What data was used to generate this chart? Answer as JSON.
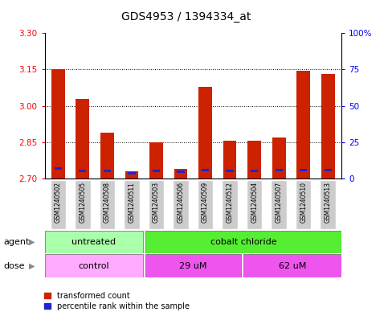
{
  "title": "GDS4953 / 1394334_at",
  "samples": [
    "GSM1240502",
    "GSM1240505",
    "GSM1240508",
    "GSM1240511",
    "GSM1240503",
    "GSM1240506",
    "GSM1240509",
    "GSM1240512",
    "GSM1240504",
    "GSM1240507",
    "GSM1240510",
    "GSM1240513"
  ],
  "transformed_count": [
    3.15,
    3.03,
    2.89,
    2.73,
    2.85,
    2.74,
    3.08,
    2.855,
    2.855,
    2.87,
    3.145,
    3.13
  ],
  "percentile_bottom": [
    2.738,
    2.728,
    2.728,
    2.718,
    2.728,
    2.722,
    2.73,
    2.728,
    2.728,
    2.73,
    2.73,
    2.73
  ],
  "percentile_height": [
    0.01,
    0.01,
    0.01,
    0.01,
    0.01,
    0.01,
    0.01,
    0.01,
    0.01,
    0.01,
    0.01,
    0.01
  ],
  "ymin": 2.7,
  "ymax": 3.3,
  "yticks_left": [
    2.7,
    2.85,
    3.0,
    3.15,
    3.3
  ],
  "yticks_right": [
    0,
    25,
    50,
    75,
    100
  ],
  "yright_labels": [
    "0",
    "25",
    "50",
    "75",
    "100%"
  ],
  "bar_color": "#cc2200",
  "percentile_color": "#2222cc",
  "bg_plot": "#ffffff",
  "agent_untreated_color": "#aaffaa",
  "agent_cobalt_color": "#55ee33",
  "dose_control_color": "#ffaaff",
  "dose_29_color": "#ee55ee",
  "dose_62_color": "#ee55ee",
  "legend_red": "transformed count",
  "legend_blue": "percentile rank within the sample",
  "bar_width": 0.55,
  "figsize": [
    4.83,
    3.93
  ],
  "dpi": 100
}
